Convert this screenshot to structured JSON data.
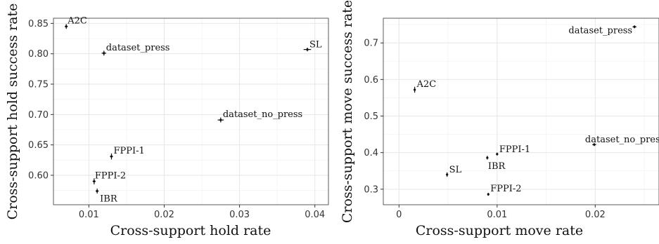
{
  "chart_data": [
    {
      "type": "scatter",
      "xlabel": "Cross-support hold rate",
      "ylabel": "Cross-support hold success rate",
      "xlim": [
        0.0053,
        0.0418
      ],
      "ylim": [
        0.5515,
        0.8585
      ],
      "xticks": [
        0.01,
        0.02,
        0.03,
        0.04
      ],
      "xtick_labels": [
        "0.01",
        "0.02",
        "0.03",
        "0.04"
      ],
      "yticks": [
        0.6,
        0.65,
        0.7,
        0.75,
        0.8,
        0.85
      ],
      "ytick_labels": [
        "0.60",
        "0.65",
        "0.70",
        "0.75",
        "0.80",
        "0.85"
      ],
      "grid": true,
      "points": [
        {
          "label": "A2C",
          "x": 0.007,
          "y": 0.845,
          "xerr": 0.0002,
          "yerr": 0.004
        },
        {
          "label": "dataset_press",
          "x": 0.012,
          "y": 0.801,
          "xerr": 0.0003,
          "yerr": 0.004
        },
        {
          "label": "SL",
          "x": 0.039,
          "y": 0.807,
          "xerr": 0.0005,
          "yerr": 0.003
        },
        {
          "label": "dataset_no_press",
          "x": 0.0275,
          "y": 0.691,
          "xerr": 0.0004,
          "yerr": 0.004
        },
        {
          "label": "FPPI-1",
          "x": 0.013,
          "y": 0.631,
          "xerr": 0.0002,
          "yerr": 0.005
        },
        {
          "label": "FPPI-2",
          "x": 0.0107,
          "y": 0.59,
          "xerr": 0.0002,
          "yerr": 0.005
        },
        {
          "label": "IBR",
          "x": 0.0111,
          "y": 0.574,
          "xerr": 0.0002,
          "yerr": 0.004
        }
      ]
    },
    {
      "type": "scatter",
      "xlabel": "Cross-support move rate",
      "ylabel": "Cross-support move success rate",
      "xlim": [
        -0.0016,
        0.0265
      ],
      "ylim": [
        0.2575,
        0.7675
      ],
      "xticks": [
        0,
        0.01,
        0.02
      ],
      "xtick_labels": [
        "0",
        "0.01",
        "0.02"
      ],
      "yticks": [
        0.3,
        0.4,
        0.5,
        0.6,
        0.7
      ],
      "ytick_labels": [
        "0.3",
        "0.4",
        "0.5",
        "0.6",
        "0.7"
      ],
      "grid": true,
      "points": [
        {
          "label": "dataset_press",
          "x": 0.024,
          "y": 0.744,
          "xerr": 0.0002,
          "yerr": 0.004
        },
        {
          "label": "A2C",
          "x": 0.0016,
          "y": 0.572,
          "xerr": 0.0001,
          "yerr": 0.008
        },
        {
          "label": "dataset_no_press",
          "x": 0.0199,
          "y": 0.422,
          "xerr": 0.0002,
          "yerr": 0.004
        },
        {
          "label": "FPPI-1",
          "x": 0.01,
          "y": 0.396,
          "xerr": 0.0001,
          "yerr": 0.004
        },
        {
          "label": "IBR",
          "x": 0.009,
          "y": 0.386,
          "xerr": 0.0001,
          "yerr": 0.005
        },
        {
          "label": "SL",
          "x": 0.0049,
          "y": 0.34,
          "xerr": 0.0001,
          "yerr": 0.006
        },
        {
          "label": "FPPI-2",
          "x": 0.0091,
          "y": 0.286,
          "xerr": 0.0001,
          "yerr": 0.004
        }
      ]
    }
  ]
}
